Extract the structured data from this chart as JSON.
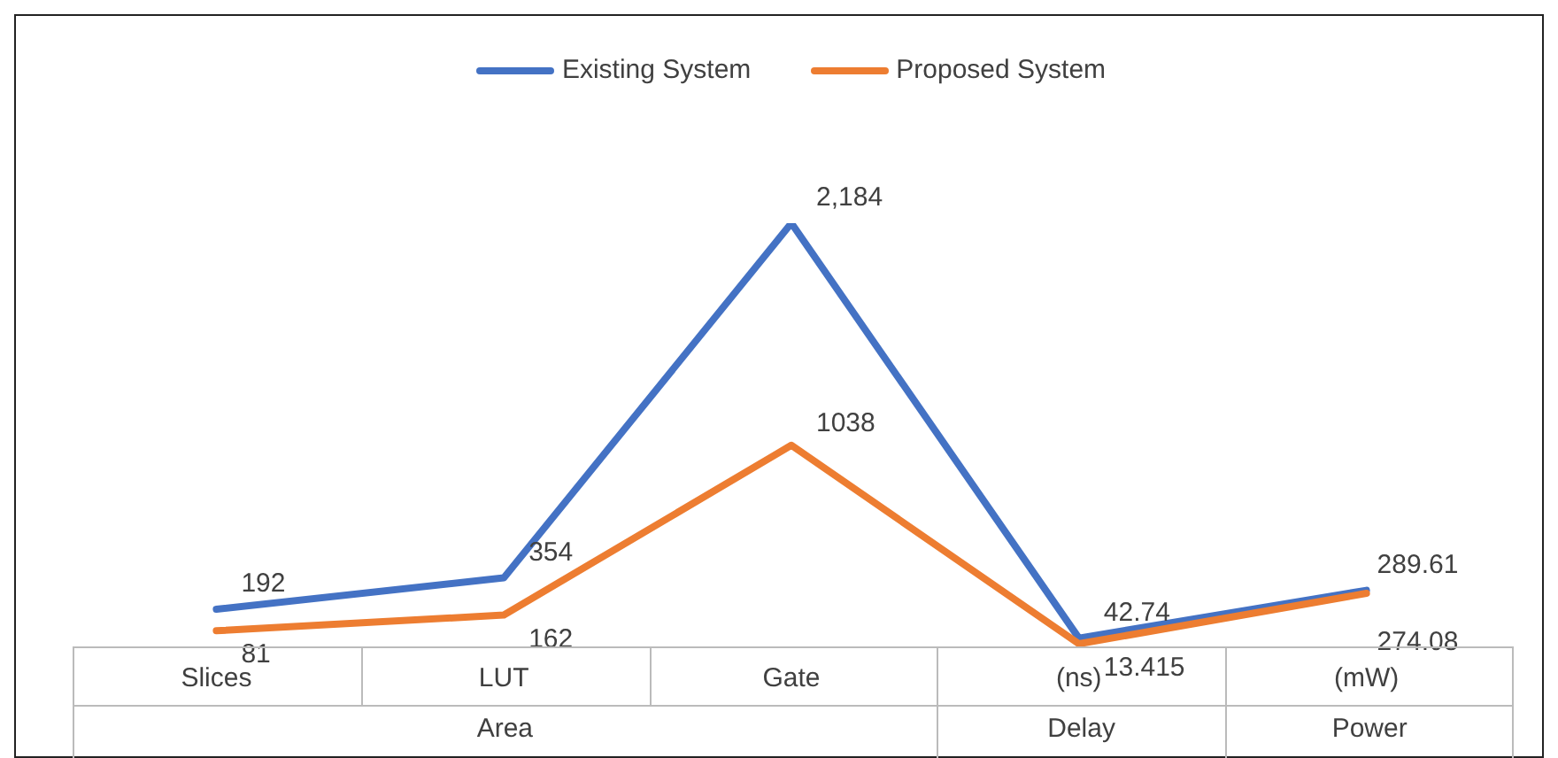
{
  "chart_data": {
    "type": "line",
    "categories": [
      "Slices",
      "LUT",
      "Gate",
      "(ns)",
      "(mW)"
    ],
    "annotations": [
      "Area",
      "Delay",
      "Power"
    ],
    "series": [
      {
        "name": "Existing System",
        "color": "#4472c4",
        "values": [
          192,
          354,
          2184,
          42.74,
          289.61
        ],
        "value_labels": [
          "192",
          "354",
          "2,184",
          "42.74",
          "289.61"
        ]
      },
      {
        "name": "Proposed System",
        "color": "#ed7d31",
        "values": [
          81,
          162,
          1038,
          13.415,
          274.08
        ],
        "value_labels": [
          "81",
          "162",
          "1038",
          "13.415",
          "274.08"
        ]
      }
    ],
    "legend": "top",
    "marker": "none",
    "line_style": "solid"
  }
}
